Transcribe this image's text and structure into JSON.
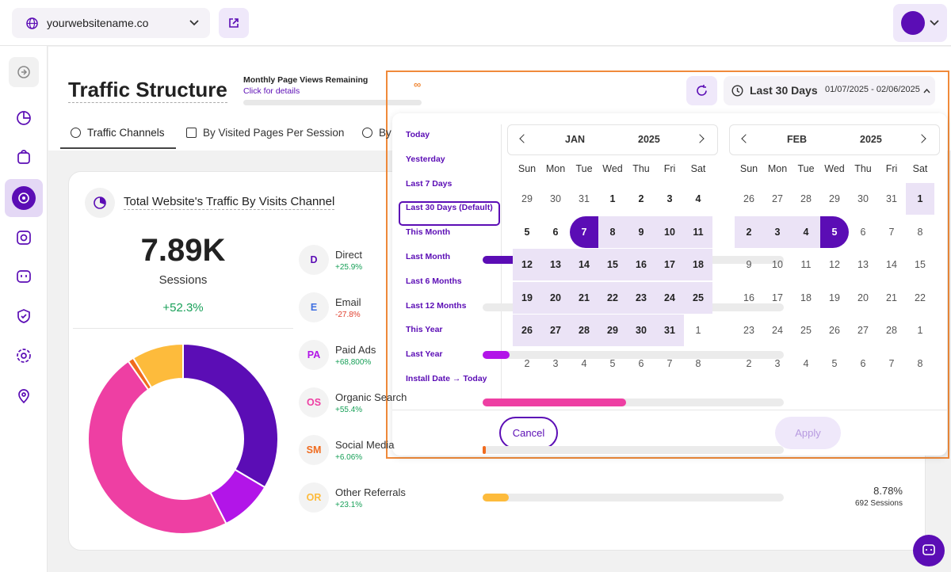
{
  "topbar": {
    "site": "yourwebsitename.co"
  },
  "header": {
    "title": "Traffic Structure",
    "quota_label": "Monthly Page Views Remaining",
    "quota_link": "Click for details",
    "quota_value": "∞"
  },
  "tabs": [
    "Traffic Channels",
    "By Visited Pages Per Session",
    "By"
  ],
  "card": {
    "title": "Total Website's Traffic By Visits Channel",
    "total": "7.89K",
    "total_label": "Sessions",
    "change": "+52.3%"
  },
  "chart_data": {
    "type": "donut",
    "categories": [
      "Direct",
      "Email",
      "Paid Ads",
      "Organic Search",
      "Social Media",
      "Other Referrals"
    ],
    "values": [
      33.5,
      0,
      9,
      47.7,
      1,
      8.78
    ],
    "value_labels": [
      null,
      null,
      null,
      null,
      null,
      "8.78%"
    ],
    "colors": [
      "#5b0db5",
      "#3f6fe0",
      "#b215e8",
      "#ee3fa3",
      "#f06b1e",
      "#fdbb3c"
    ]
  },
  "channels": [
    {
      "abbr": "D",
      "change": "+25.9%"
    },
    {
      "abbr": "E",
      "change": "-27.8%"
    },
    {
      "abbr": "PA",
      "change": "+68,800%"
    },
    {
      "abbr": "OS",
      "change": "+55.4%"
    },
    {
      "abbr": "SM",
      "change": "+6.06%"
    },
    {
      "abbr": "OR",
      "change": "+23.1%",
      "sessions": "692 Sessions"
    }
  ],
  "datepicker": {
    "preset": "Last 30 Days",
    "range": "01/07/2025 - 02/06/2025",
    "presets": [
      "Today",
      "Yesterday",
      "Last 7 Days",
      "Last 30 Days (Default)",
      "This Month",
      "Last Month",
      "Last 6 Months",
      "Last 12 Months",
      "This Year",
      "Last Year",
      "Install Date → Today"
    ],
    "weekdays": [
      "Sun",
      "Mon",
      "Tue",
      "Wed",
      "Thu",
      "Fri",
      "Sat"
    ],
    "calendars": [
      {
        "month": "JAN",
        "year": "2025",
        "days": [
          29,
          30,
          31,
          1,
          2,
          3,
          4,
          5,
          6,
          7,
          8,
          9,
          10,
          11,
          12,
          13,
          14,
          15,
          16,
          17,
          18,
          19,
          20,
          21,
          22,
          23,
          24,
          25,
          26,
          27,
          28,
          29,
          30,
          31,
          1,
          2,
          3,
          4,
          5,
          6,
          7,
          8
        ]
      },
      {
        "month": "FEB",
        "year": "2025",
        "days": [
          26,
          27,
          28,
          29,
          30,
          31,
          1,
          2,
          3,
          4,
          5,
          6,
          7,
          8,
          9,
          10,
          11,
          12,
          13,
          14,
          15,
          16,
          17,
          18,
          19,
          20,
          21,
          22,
          23,
          24,
          25,
          26,
          27,
          28,
          1,
          2,
          3,
          4,
          5,
          6,
          7,
          8
        ]
      }
    ],
    "cancel": "Cancel",
    "apply": "Apply"
  }
}
